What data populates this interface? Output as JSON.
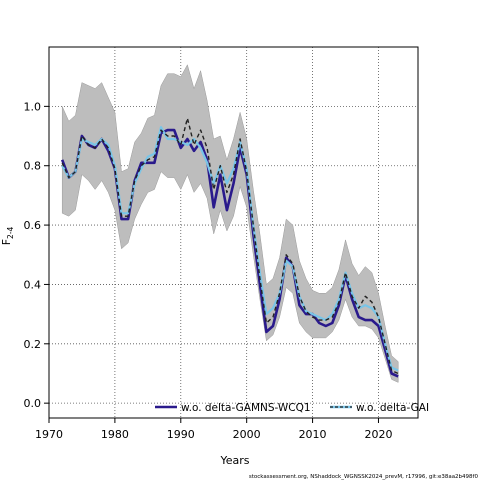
{
  "chart_data": {
    "type": "line",
    "xlabel": "Years",
    "ylabel_main": "F",
    "ylabel_sub": "2-4",
    "xlim": [
      1970,
      2026
    ],
    "ylim": [
      -0.05,
      1.2
    ],
    "xticks": [
      1970,
      1980,
      1990,
      2000,
      2010,
      2020
    ],
    "yticks": [
      0.0,
      0.2,
      0.4,
      0.6,
      0.8,
      1.0
    ],
    "ytick_labels": [
      "0.0",
      "0.2",
      "0.4",
      "0.6",
      "0.8",
      "1.0"
    ],
    "grid": true,
    "legend_placement": "bottom",
    "x": [
      1972,
      1973,
      1974,
      1975,
      1976,
      1977,
      1978,
      1979,
      1980,
      1981,
      1982,
      1983,
      1984,
      1985,
      1986,
      1987,
      1988,
      1989,
      1990,
      1991,
      1992,
      1993,
      1994,
      1995,
      1996,
      1997,
      1998,
      1999,
      2000,
      2001,
      2002,
      2003,
      2004,
      2005,
      2006,
      2007,
      2008,
      2009,
      2010,
      2011,
      2012,
      2013,
      2014,
      2015,
      2016,
      2017,
      2018,
      2019,
      2020,
      2021,
      2022,
      2023
    ],
    "series": [
      {
        "name": "w.o. delta-GAMNS-WCQ1",
        "color": "#2a1a8c",
        "style": "solid",
        "values": [
          0.82,
          0.76,
          0.78,
          0.9,
          0.87,
          0.86,
          0.89,
          0.85,
          0.79,
          0.62,
          0.62,
          0.75,
          0.81,
          0.81,
          0.81,
          0.91,
          0.92,
          0.92,
          0.86,
          0.89,
          0.85,
          0.88,
          0.82,
          0.66,
          0.77,
          0.65,
          0.74,
          0.86,
          0.77,
          0.57,
          0.4,
          0.24,
          0.26,
          0.35,
          0.49,
          0.46,
          0.33,
          0.3,
          0.3,
          0.27,
          0.26,
          0.27,
          0.33,
          0.43,
          0.35,
          0.29,
          0.28,
          0.28,
          0.26,
          0.18,
          0.1,
          0.09
        ]
      },
      {
        "name": "w.o. delta-GAI",
        "color": "#79c5e8",
        "style": "solid",
        "values": [
          0.8,
          0.76,
          0.78,
          0.89,
          0.88,
          0.87,
          0.89,
          0.87,
          0.8,
          0.64,
          0.64,
          0.74,
          0.79,
          0.83,
          0.84,
          0.93,
          0.89,
          0.89,
          0.88,
          0.87,
          0.89,
          0.86,
          0.81,
          0.74,
          0.8,
          0.74,
          0.79,
          0.88,
          0.79,
          0.6,
          0.44,
          0.3,
          0.32,
          0.37,
          0.48,
          0.46,
          0.36,
          0.31,
          0.3,
          0.29,
          0.28,
          0.3,
          0.35,
          0.44,
          0.37,
          0.32,
          0.33,
          0.32,
          0.29,
          0.2,
          0.12,
          0.11
        ]
      },
      {
        "color": "#222222",
        "style": "dashed",
        "values": [
          0.81,
          0.76,
          0.78,
          0.9,
          0.87,
          0.86,
          0.89,
          0.86,
          0.79,
          0.63,
          0.63,
          0.75,
          0.8,
          0.82,
          0.83,
          0.92,
          0.9,
          0.9,
          0.87,
          0.96,
          0.87,
          0.92,
          0.86,
          0.72,
          0.8,
          0.71,
          0.77,
          0.89,
          0.78,
          0.6,
          0.42,
          0.27,
          0.29,
          0.37,
          0.5,
          0.47,
          0.36,
          0.31,
          0.29,
          0.28,
          0.28,
          0.29,
          0.34,
          0.44,
          0.36,
          0.32,
          0.36,
          0.34,
          0.29,
          0.2,
          0.11,
          0.1
        ]
      }
    ],
    "band": {
      "color": "#bdbdbd",
      "upper": [
        1.0,
        0.95,
        0.97,
        1.08,
        1.07,
        1.06,
        1.08,
        1.03,
        0.98,
        0.78,
        0.79,
        0.88,
        0.91,
        0.96,
        0.97,
        1.07,
        1.11,
        1.11,
        1.1,
        1.14,
        1.06,
        1.12,
        1.02,
        0.89,
        0.9,
        0.82,
        0.89,
        0.98,
        0.89,
        0.72,
        0.57,
        0.4,
        0.42,
        0.49,
        0.62,
        0.6,
        0.48,
        0.42,
        0.38,
        0.37,
        0.37,
        0.39,
        0.45,
        0.55,
        0.47,
        0.43,
        0.46,
        0.44,
        0.37,
        0.26,
        0.16,
        0.14
      ],
      "lower": [
        0.64,
        0.63,
        0.65,
        0.77,
        0.75,
        0.72,
        0.75,
        0.71,
        0.65,
        0.52,
        0.54,
        0.62,
        0.67,
        0.71,
        0.72,
        0.78,
        0.76,
        0.76,
        0.72,
        0.77,
        0.71,
        0.74,
        0.69,
        0.57,
        0.65,
        0.58,
        0.63,
        0.73,
        0.66,
        0.5,
        0.35,
        0.21,
        0.23,
        0.29,
        0.39,
        0.37,
        0.27,
        0.24,
        0.22,
        0.22,
        0.22,
        0.24,
        0.28,
        0.35,
        0.29,
        0.26,
        0.26,
        0.25,
        0.22,
        0.15,
        0.08,
        0.07
      ]
    }
  },
  "legend": [
    {
      "label": "w.o. delta-GAMNS-WCQ1",
      "color": "#2a1a8c",
      "style": "solid"
    },
    {
      "label": "w.o. delta-GAI",
      "color": "#79c5e8",
      "style": "dashed-over"
    }
  ],
  "footer": "stockassessment.org, NShaddock_WGNSSK2024_prevM, r17996, git:e38aa2b498f0"
}
